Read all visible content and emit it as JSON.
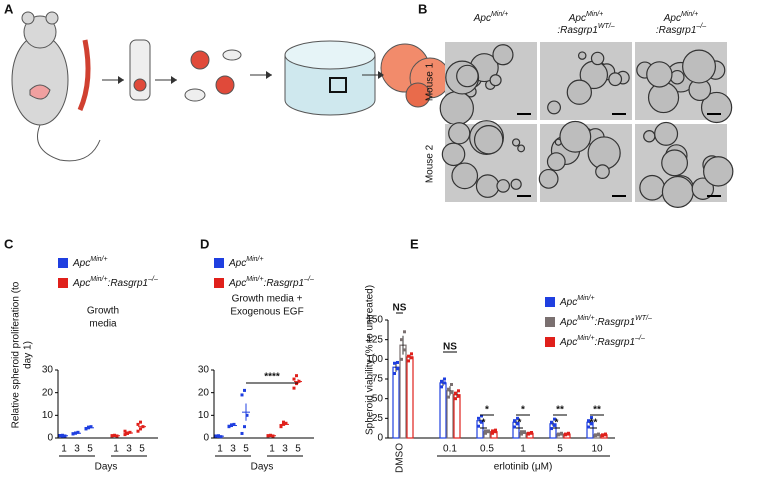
{
  "panels": {
    "A": {
      "label": "A"
    },
    "B": {
      "label": "B",
      "columns": [
        [
          [
            "Apc",
            "Min/+"
          ]
        ],
        [
          [
            "Apc",
            "Min/+"
          ],
          [
            ":Rasgrp1",
            "WT/–"
          ]
        ],
        [
          [
            "Apc",
            "Min/+"
          ],
          [
            ":Rasgrp1",
            "–/–"
          ]
        ]
      ],
      "column_colors": [
        "#2b2bd6",
        "#8a8a8a",
        "#e0201b"
      ],
      "rows": [
        "Mouse 1",
        "Mouse 2"
      ]
    }
  },
  "chart_data": [
    {
      "type": "dot",
      "panel": "C",
      "title": [
        "Growth",
        "media"
      ],
      "ylabel": [
        "Relative spheroid proliferation (to",
        "day 1)"
      ],
      "xlabel": "Days",
      "categories": [
        "1",
        "3",
        "5"
      ],
      "ylim": [
        0,
        30
      ],
      "yticks": [
        0,
        10,
        20,
        30
      ],
      "series": [
        {
          "name": [
            "Apc",
            "Min/+"
          ],
          "color": "#1f3fe0",
          "values": [
            1,
            2.1,
            4.5
          ],
          "errors": [
            0.1,
            0.15,
            0.2
          ],
          "points": [
            [
              1,
              1.2,
              0.9,
              1.1,
              0.8
            ],
            [
              1.8,
              2.2,
              2.5,
              1.9,
              2.1
            ],
            [
              4,
              4.5,
              5,
              4.2,
              4.8
            ]
          ]
        },
        {
          "name": [
            "Apc",
            "Min/+",
            ":Rasgrp1",
            "–/–"
          ],
          "color": "#e0201b",
          "values": [
            1,
            2.2,
            5
          ],
          "errors": [
            0.05,
            0.25,
            0.7
          ],
          "points": [
            [
              1,
              1.1,
              0.9,
              1,
              1.2
            ],
            [
              1.5,
              2,
              2.5,
              3,
              2.2
            ],
            [
              3,
              4,
              5,
              6,
              7
            ]
          ]
        }
      ],
      "annotations": []
    },
    {
      "type": "dot",
      "panel": "D",
      "title": [
        "Growth media +",
        "Exogenous EGF"
      ],
      "xlabel": "Days",
      "categories": [
        "1",
        "3",
        "5"
      ],
      "ylim": [
        0,
        30
      ],
      "yticks": [
        0,
        10,
        20,
        30
      ],
      "series": [
        {
          "name": [
            "Apc",
            "Min/+"
          ],
          "color": "#1f3fe0",
          "values": [
            0.8,
            5.5,
            11.4
          ],
          "errors": [
            0.1,
            0.2,
            3.8
          ],
          "points": [
            [
              0.8,
              1,
              0.6,
              0.9,
              0.7
            ],
            [
              5,
              5.5,
              6,
              5.2,
              5.8
            ],
            [
              2,
              5,
              10,
              19,
              21
            ]
          ]
        },
        {
          "name": [
            "Apc",
            "Min/+",
            ":Rasgrp1",
            "–/–"
          ],
          "color": "#e0201b",
          "values": [
            1,
            6,
            24.9
          ],
          "errors": [
            0.1,
            0.4,
            1
          ],
          "points": [
            [
              1,
              1.1,
              0.9,
              1,
              1.2
            ],
            [
              5,
              6,
              6.5,
              5.5,
              7
            ],
            [
              22,
              24,
              25,
              26,
              27.5
            ]
          ]
        }
      ],
      "annotations": [
        "****"
      ]
    },
    {
      "type": "bar",
      "panel": "E",
      "ylabel": "Spheroid viability (% to untreated)",
      "xlabel": "erlotinib (μM)",
      "categories": [
        "DMSO",
        "0.1",
        "0.5",
        "1",
        "5",
        "10"
      ],
      "ylim": [
        0,
        150
      ],
      "yticks": [
        0,
        25,
        50,
        75,
        100,
        125,
        150
      ],
      "series": [
        {
          "name": [
            "Apc",
            "Min/+"
          ],
          "color": "#1f3fe0",
          "values": [
            90,
            70,
            22,
            20,
            18,
            20
          ],
          "errors": [
            6,
            4,
            3,
            3,
            3,
            3
          ],
          "points": [
            [
              82,
              88,
              95,
              96
            ],
            [
              65,
              70,
              72,
              75
            ],
            [
              15,
              20,
              25,
              28
            ],
            [
              14,
              18,
              22,
              25
            ],
            [
              12,
              16,
              20,
              24
            ],
            [
              14,
              18,
              22,
              26
            ]
          ]
        },
        {
          "name": [
            "Apc",
            "Min/+",
            ":Rasgrp1",
            "WT/–"
          ],
          "color": "#7a7070",
          "values": [
            118,
            60,
            8,
            7,
            5,
            4
          ],
          "errors": [
            12,
            6,
            1,
            1,
            1,
            1
          ],
          "points": [
            [
              100,
              112,
              125,
              135
            ],
            [
              52,
              58,
              62,
              68
            ],
            [
              6,
              8,
              9,
              9
            ],
            [
              5,
              7,
              8,
              8
            ],
            [
              4,
              5,
              5,
              6
            ],
            [
              3,
              4,
              4,
              5
            ]
          ]
        },
        {
          "name": [
            "Apc",
            "Min/+",
            ":Rasgrp1",
            "–/–"
          ],
          "color": "#e0201b",
          "values": [
            103,
            55,
            8,
            6,
            5,
            4
          ],
          "errors": [
            3,
            4,
            1,
            1,
            1,
            1
          ],
          "points": [
            [
              98,
              102,
              104,
              107
            ],
            [
              50,
              53,
              57,
              60
            ],
            [
              6,
              8,
              9,
              10
            ],
            [
              5,
              6,
              6,
              7
            ],
            [
              4,
              5,
              5,
              6
            ],
            [
              3,
              4,
              4,
              5
            ]
          ]
        }
      ],
      "annotations": [
        "NS",
        "NS",
        "*",
        "*",
        "*",
        "*",
        "**",
        "*",
        "**",
        "**"
      ]
    }
  ]
}
